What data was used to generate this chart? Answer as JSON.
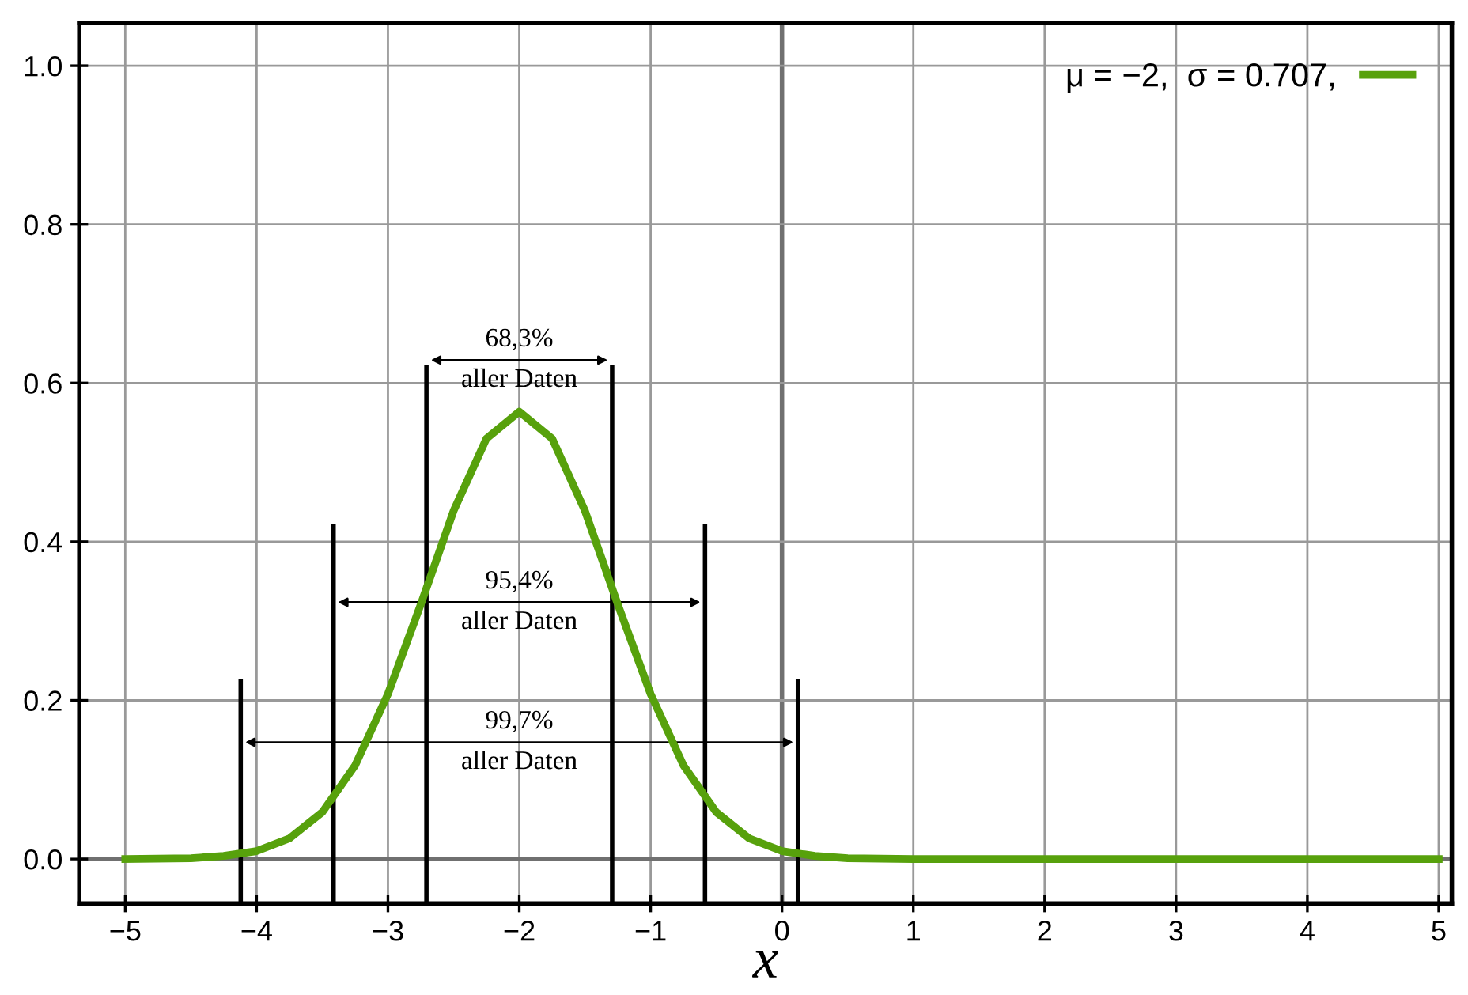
{
  "chart_data": {
    "type": "line",
    "series": [
      {
        "name": "μ = −2,  σ = 0.707,",
        "color": "#57a10c",
        "x": [
          -5,
          -4.5,
          -4.25,
          -4,
          -3.75,
          -3.5,
          -3.25,
          -3,
          -2.75,
          -2.5,
          -2.25,
          -2,
          -1.75,
          -1.5,
          -1.25,
          -1,
          -0.75,
          -0.5,
          -0.25,
          0,
          0.25,
          0.5,
          1,
          2,
          3,
          4,
          5
        ],
        "values": [
          0.0,
          0.001,
          0.004,
          0.01,
          0.026,
          0.059,
          0.118,
          0.208,
          0.321,
          0.439,
          0.53,
          0.564,
          0.53,
          0.439,
          0.321,
          0.208,
          0.118,
          0.059,
          0.026,
          0.01,
          0.004,
          0.001,
          0.0,
          0.0,
          0.0,
          0.0,
          0.0
        ]
      },
      {
        "color": "#000000",
        "x": [
          -2.707,
          -2.707
        ],
        "values": [
          -0.056,
          0.62
        ]
      },
      {
        "color": "#000000",
        "x": [
          -1.293,
          -1.293
        ],
        "values": [
          -0.056,
          0.62
        ]
      },
      {
        "color": "#000000",
        "x": [
          -3.414,
          -3.414
        ],
        "values": [
          -0.056,
          0.42
        ]
      },
      {
        "color": "#000000",
        "x": [
          -0.586,
          -0.586
        ],
        "values": [
          -0.056,
          0.42
        ]
      },
      {
        "color": "#000000",
        "x": [
          -4.121,
          -4.121
        ],
        "values": [
          -0.056,
          0.224
        ]
      },
      {
        "color": "#000000",
        "x": [
          0.121,
          0.121
        ],
        "values": [
          -0.056,
          0.224
        ]
      }
    ],
    "annotations": [
      "68,3%\naller Daten",
      "95,4%\naller Daten",
      "99,7%\naller Daten"
    ],
    "xlabel": "x",
    "xlim": [
      -5.35,
      5.1
    ],
    "ylim": [
      -0.056,
      1.054
    ],
    "xticks": [
      {
        "value": -5,
        "label": "−5"
      },
      {
        "value": -4,
        "label": "−4"
      },
      {
        "value": -3,
        "label": "−3"
      },
      {
        "value": -2,
        "label": "−2"
      },
      {
        "value": -1,
        "label": "−1"
      },
      0,
      1,
      2,
      3,
      4,
      5
    ],
    "yticks": [
      {
        "value": 0,
        "label": "0.0"
      },
      {
        "value": 0.2,
        "label": "0.2"
      },
      {
        "value": 0.4,
        "label": "0.4"
      },
      {
        "value": 0.6,
        "label": "0.6"
      },
      {
        "value": 0.8,
        "label": "0.8"
      },
      {
        "value": 1,
        "label": "1.0"
      }
    ],
    "grid": true,
    "legend": "top right",
    "line_style": "solid"
  }
}
